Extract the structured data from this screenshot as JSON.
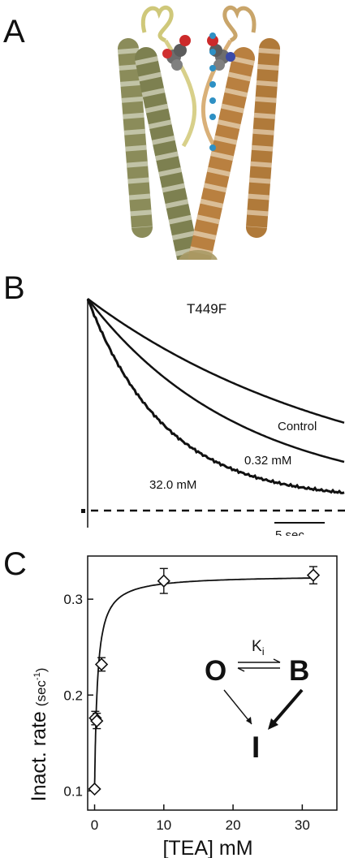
{
  "panel_labels": {
    "a": "A",
    "b": "B",
    "c": "C"
  },
  "panel_b": {
    "mutant": "T449F",
    "traces": [
      {
        "label": "Control"
      },
      {
        "label": "0.32 mM"
      },
      {
        "label": "32.0 mM"
      }
    ],
    "scale_bar": "5 sec"
  },
  "chart_data": {
    "type": "scatter",
    "xlabel": "[TEA] mM",
    "ylabel": "Inact. rate",
    "ylabel_unit": "(sec",
    "ylabel_unit_exp": "-1",
    "ylabel_unit_close": ")",
    "xlim": [
      -1,
      35
    ],
    "ylim": [
      0.08,
      0.345
    ],
    "xticks": [
      0,
      10,
      20,
      30
    ],
    "yticks": [
      0.1,
      0.2,
      0.3
    ],
    "points": [
      {
        "x": 0.0,
        "y": 0.102,
        "err": 0.0
      },
      {
        "x": 0.1,
        "y": 0.176,
        "err": 0.007
      },
      {
        "x": 0.32,
        "y": 0.173,
        "err": 0.008
      },
      {
        "x": 1.0,
        "y": 0.232,
        "err": 0.007
      },
      {
        "x": 10.0,
        "y": 0.319,
        "err": 0.013
      },
      {
        "x": 31.6,
        "y": 0.325,
        "err": 0.009
      }
    ],
    "fit": {
      "y0": 0.102,
      "ymax": 0.325,
      "k": 0.42
    },
    "scheme": {
      "open": "O",
      "blocked": "B",
      "inactivated": "I",
      "constant": "K",
      "constant_sub": "i"
    }
  }
}
